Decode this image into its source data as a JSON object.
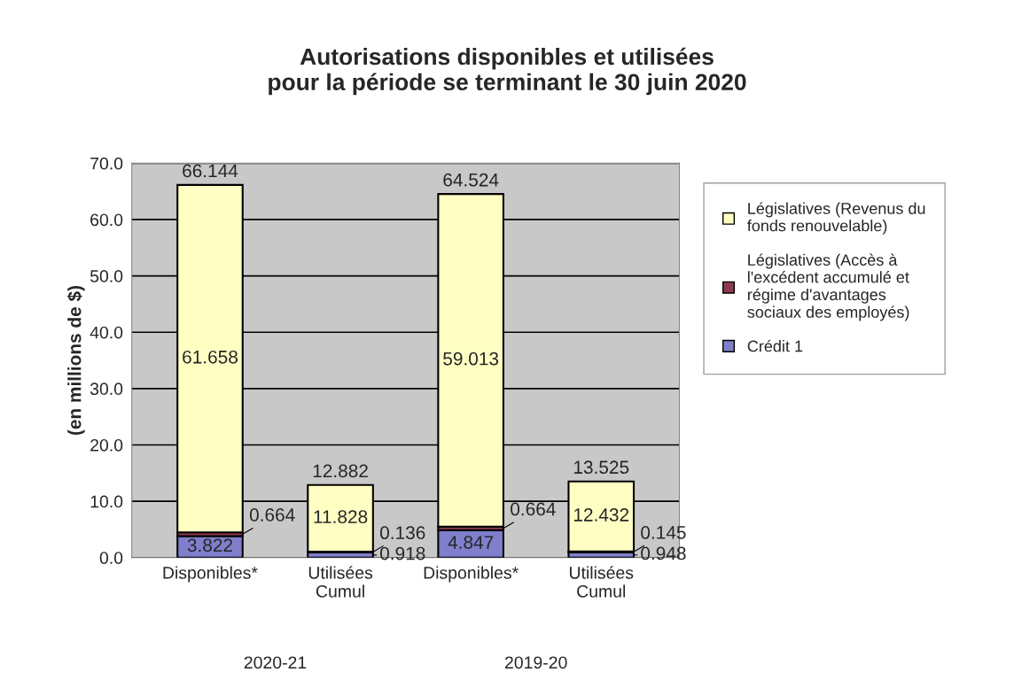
{
  "chart_data": {
    "type": "bar",
    "stacked": true,
    "title": "Autorisations disponibles et utilisées\npour la période se terminant le 30 juin 2020",
    "ylabel": "(en millions de $)",
    "categories": [
      "Disponibles*",
      "Utilisées\nCumul",
      "Disponibles*",
      "Utilisées\nCumul"
    ],
    "annotations": [
      "2020-21",
      "2019-20"
    ],
    "series": [
      {
        "name": "Crédit 1",
        "color": "#7f7fcc",
        "values": [
          3.822,
          0.918,
          4.847,
          0.948
        ]
      },
      {
        "name": "Législatives (Accès à\nl'excédent accumulé et\nrégime d'avantages\nsociaux des employés)",
        "color": "#8b3a50",
        "values": [
          0.664,
          0.136,
          0.664,
          0.145
        ]
      },
      {
        "name": "Législatives (Revenus du\nfonds renouvelable)",
        "color": "#ffffc4",
        "values": [
          61.658,
          11.828,
          59.013,
          12.432
        ]
      }
    ],
    "data_labels": true,
    "totals": [
      "66.144",
      "12.882",
      "64.524",
      "13.525"
    ],
    "ylim": [
      0,
      70
    ],
    "yticks": [
      {
        "value": 0,
        "label": "0.0"
      },
      {
        "value": 10,
        "label": "10.0"
      },
      {
        "value": 20,
        "label": "20.0"
      },
      {
        "value": 30,
        "label": "30.0"
      },
      {
        "value": 40,
        "label": "40.0"
      },
      {
        "value": 50,
        "label": "50.0"
      },
      {
        "value": 60,
        "label": "60.0"
      },
      {
        "value": 70,
        "label": "70.0"
      }
    ],
    "grid": "y",
    "legend": "right"
  }
}
